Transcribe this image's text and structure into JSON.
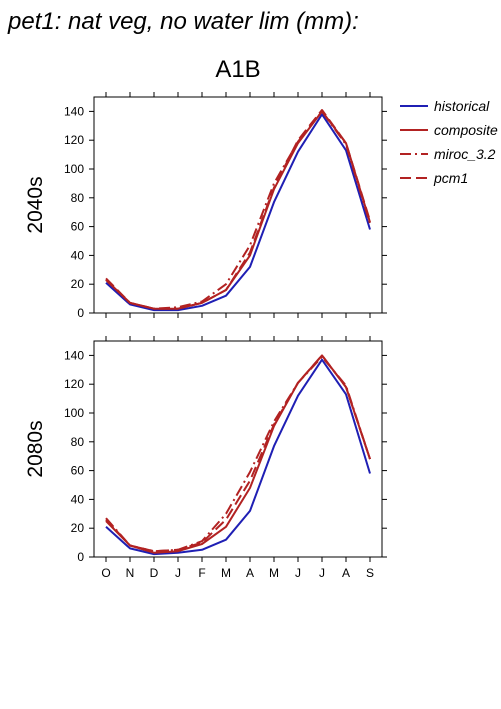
{
  "title": "pet1: nat veg, no water lim (mm):",
  "scenario": "A1B",
  "colors": {
    "historical": "#1f1fb4",
    "model": "#b22222"
  },
  "chart_data": [
    {
      "type": "line",
      "panel_label": "2040s",
      "categories": [
        "O",
        "N",
        "D",
        "J",
        "F",
        "M",
        "A",
        "M",
        "J",
        "J",
        "A",
        "S"
      ],
      "ylim": [
        0,
        150
      ],
      "yticks": [
        0,
        20,
        40,
        60,
        80,
        100,
        120,
        140
      ],
      "series": [
        {
          "name": "historical",
          "style": "solid",
          "color": "#1f1fb4",
          "values": [
            21,
            6,
            2,
            2,
            5,
            12,
            32,
            77,
            112,
            138,
            113,
            58
          ]
        },
        {
          "name": "composite",
          "style": "solid",
          "color": "#b22222",
          "values": [
            23,
            7,
            3,
            3,
            7,
            16,
            40,
            86,
            118,
            140,
            118,
            63
          ]
        },
        {
          "name": "miroc_3.2",
          "style": "dashdot",
          "color": "#b22222",
          "values": [
            23,
            7,
            3,
            4,
            8,
            20,
            47,
            90,
            119,
            140,
            117,
            62
          ]
        },
        {
          "name": "pcm1",
          "style": "dashed",
          "color": "#b22222",
          "values": [
            24,
            7,
            3,
            3,
            7,
            16,
            42,
            87,
            120,
            141,
            118,
            64
          ]
        }
      ]
    },
    {
      "type": "line",
      "panel_label": "2080s",
      "categories": [
        "O",
        "N",
        "D",
        "J",
        "F",
        "M",
        "A",
        "M",
        "J",
        "J",
        "A",
        "S"
      ],
      "ylim": [
        0,
        150
      ],
      "yticks": [
        0,
        20,
        40,
        60,
        80,
        100,
        120,
        140
      ],
      "series": [
        {
          "name": "historical",
          "style": "solid",
          "color": "#1f1fb4",
          "values": [
            21,
            6,
            2,
            3,
            5,
            12,
            32,
            77,
            112,
            137,
            113,
            58
          ]
        },
        {
          "name": "composite",
          "style": "solid",
          "color": "#b22222",
          "values": [
            25,
            8,
            3,
            4,
            9,
            21,
            48,
            91,
            121,
            140,
            118,
            68
          ]
        },
        {
          "name": "miroc_3.2",
          "style": "dashdot",
          "color": "#b22222",
          "values": [
            27,
            8,
            4,
            5,
            11,
            30,
            59,
            94,
            121,
            139,
            119,
            68
          ]
        },
        {
          "name": "pcm1",
          "style": "dashed",
          "color": "#b22222",
          "values": [
            26,
            8,
            4,
            5,
            10,
            26,
            53,
            92,
            121,
            140,
            118,
            68
          ]
        }
      ]
    }
  ]
}
